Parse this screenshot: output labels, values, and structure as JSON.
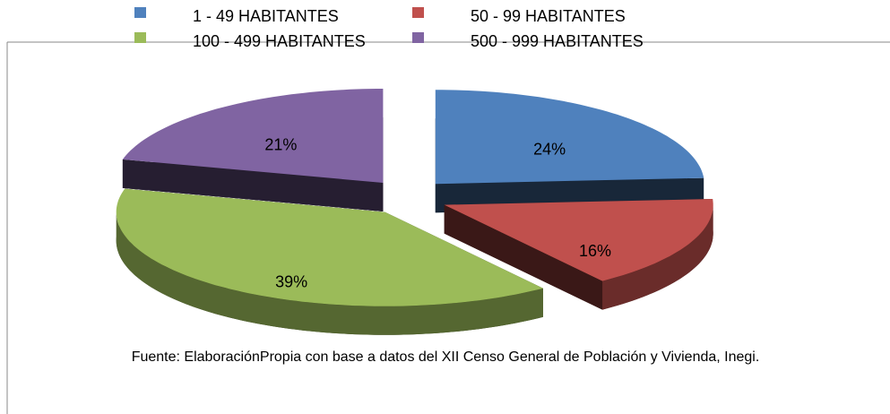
{
  "chart_data": {
    "type": "pie",
    "categories": [
      "1 - 49 HABITANTES",
      "50 - 99 HABITANTES",
      "100 - 499 HABITANTES",
      "500 - 999 HABITANTES"
    ],
    "values": [
      24,
      16,
      39,
      21
    ],
    "value_labels": [
      "24%",
      "16%",
      "39%",
      "21%"
    ],
    "colors": [
      "#4f81bd",
      "#c0504d",
      "#9bbb59",
      "#8064a2"
    ],
    "source": "Fuente: ElaboraciónPropia con base a datos del XII Censo General de Población y Vivienda, Inegi."
  }
}
